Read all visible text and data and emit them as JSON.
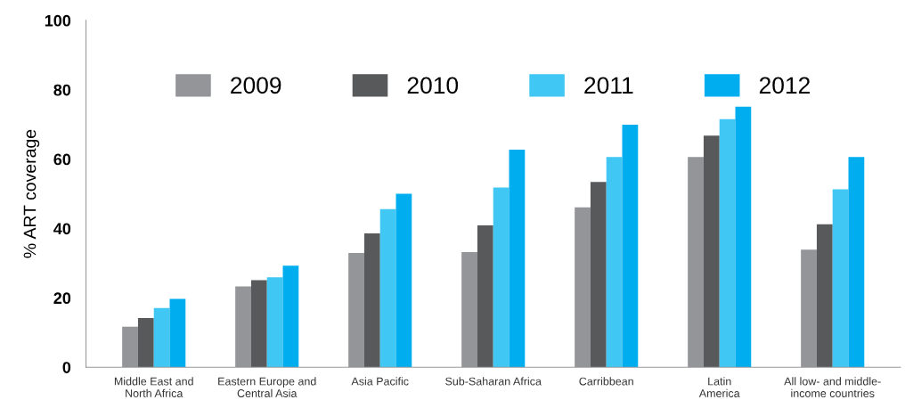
{
  "chart_data": {
    "type": "bar",
    "ylabel": "% ART coverage",
    "categories": [
      "Middle East and\nNorth Africa",
      "Eastern Europe and\nCentral Asia",
      "Asia Pacific",
      "Sub-Saharan Africa",
      "Carribbean",
      "Latin\nAmerica",
      "All low- and middle-\nincome countries"
    ],
    "series": [
      {
        "name": "2009",
        "color": "#939598",
        "values": [
          11.7,
          23.3,
          32.9,
          33.2,
          46.1,
          60.6,
          33.9
        ]
      },
      {
        "name": "2010",
        "color": "#58595b",
        "values": [
          14.2,
          25.1,
          38.6,
          40.9,
          53.4,
          66.8,
          41.2
        ]
      },
      {
        "name": "2011",
        "color": "#41c7f4",
        "values": [
          17.1,
          25.9,
          45.6,
          51.8,
          60.6,
          71.5,
          51.3
        ]
      },
      {
        "name": "2012",
        "color": "#00aeef",
        "values": [
          19.7,
          29.3,
          50,
          62.7,
          69.9,
          75.1,
          60.6
        ]
      }
    ],
    "ylim": [
      0,
      100
    ],
    "yticks": [
      0,
      20,
      40,
      60,
      80,
      100
    ],
    "grid": false,
    "legend": "top"
  }
}
